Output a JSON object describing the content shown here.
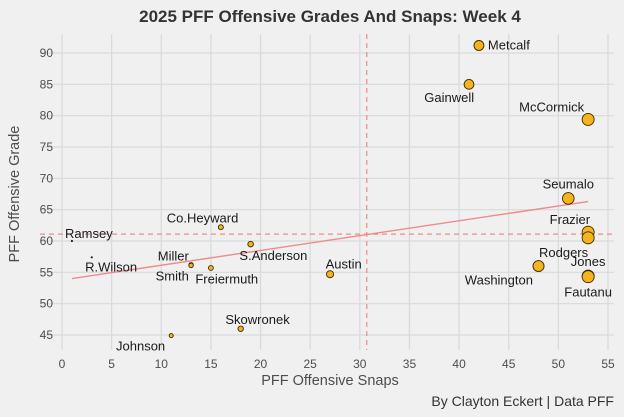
{
  "chart_data": {
    "type": "scatter",
    "title": "2025 PFF Offensive Grades And Snaps: Week 4",
    "xlabel": "PFF Offensive Snaps",
    "ylabel": "PFF Offensive Grade",
    "caption": "By Clayton Eckert | Data PFF",
    "xlim": [
      0,
      55
    ],
    "ylim": [
      45,
      90
    ],
    "x_ticks": [
      0,
      5,
      10,
      15,
      20,
      25,
      30,
      35,
      40,
      45,
      50,
      55
    ],
    "y_ticks": [
      45,
      50,
      55,
      60,
      65,
      70,
      75,
      80,
      85,
      90
    ],
    "grid": true,
    "legend": "none",
    "colors": {
      "point_fill": "#f5b41e",
      "point_stroke": "#3a2a00",
      "trend": "#ef8a8a",
      "ref_line": "#ef8a8a"
    },
    "reference_lines": {
      "x_mean": 30.7,
      "y_mean": 61.1
    },
    "trend_line": {
      "x": [
        1,
        53
      ],
      "y": [
        54.0,
        66.3
      ]
    },
    "points": [
      {
        "name": "Metcalf",
        "x": 42,
        "y": 91.2,
        "label_pos": "right"
      },
      {
        "name": "Gainwell",
        "x": 41,
        "y": 85.0,
        "label_pos": "below-left"
      },
      {
        "name": "McCormick",
        "x": 53,
        "y": 79.4,
        "label_pos": "above-left"
      },
      {
        "name": "Seumalo",
        "x": 51,
        "y": 66.8,
        "label_pos": "above"
      },
      {
        "name": "Frazier",
        "x": 53,
        "y": 61.4,
        "label_pos": "above-left"
      },
      {
        "name": "Rodgers",
        "x": 53,
        "y": 60.5,
        "label_pos": "below-left"
      },
      {
        "name": "Washington",
        "x": 48,
        "y": 56.0,
        "label_pos": "below-left"
      },
      {
        "name": "Jones",
        "x": 53,
        "y": 54.4,
        "label_pos": "above"
      },
      {
        "name": "Fautanu",
        "x": 53,
        "y": 54.3,
        "label_pos": "below"
      },
      {
        "name": "Austin",
        "x": 27,
        "y": 54.7,
        "label_pos": "above-right"
      },
      {
        "name": "Co.Heyward",
        "x": 16,
        "y": 62.2,
        "label_pos": "above-left"
      },
      {
        "name": "S.Anderson",
        "x": 19,
        "y": 59.5,
        "label_pos": "below-right"
      },
      {
        "name": "Miller",
        "x": 13,
        "y": 56.2,
        "label_pos": "above-left"
      },
      {
        "name": "Smith",
        "x": 13,
        "y": 56.1,
        "label_pos": "below-left"
      },
      {
        "name": "Freiermuth",
        "x": 15,
        "y": 55.7,
        "label_pos": "below-right"
      },
      {
        "name": "Skowronek",
        "x": 18,
        "y": 46.0,
        "label_pos": "above-right"
      },
      {
        "name": "Johnson",
        "x": 11,
        "y": 44.9,
        "label_pos": "below-left"
      },
      {
        "name": "Ramsey",
        "x": 1,
        "y": 60.0,
        "label_pos": "above-right"
      },
      {
        "name": "R.Wilson",
        "x": 3,
        "y": 57.4,
        "label_pos": "below-right"
      }
    ]
  }
}
